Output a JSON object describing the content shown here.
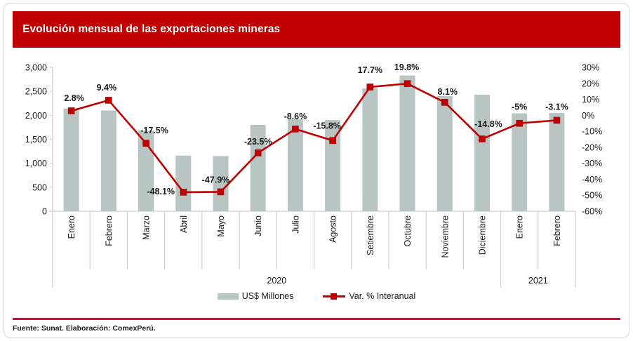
{
  "card": {
    "title": "Evolución mensual de las exportaciones mineras",
    "source": "Fuente: Sunat. Elaboración: ComexPerú."
  },
  "colors": {
    "banner_red": "#c00000",
    "bar_gray": "#b9c5c2",
    "line_red": "#c00000",
    "footer_rule_red": "#c9112e",
    "axis_line": "#c9d3d1",
    "text": "#1a1a1a"
  },
  "legend": [
    {
      "label": "US$ Millones"
    },
    {
      "label": "Var. % Interanual"
    }
  ],
  "chart_data": {
    "type": "combo",
    "title": "Evolución mensual de las exportaciones mineras",
    "categories": [
      "Enero",
      "Febrero",
      "Marzo",
      "Abril",
      "Mayo",
      "Junio",
      "Julio",
      "Agosto",
      "Setiembre",
      "Octubre",
      "Noviembre",
      "Diciembre",
      "Enero",
      "Febrero"
    ],
    "year_groups": [
      {
        "label": "2020",
        "count": 12
      },
      {
        "label": "2021",
        "count": 2
      }
    ],
    "series": [
      {
        "name": "US$ Millones",
        "type": "bar",
        "axis": "left",
        "values": [
          2140,
          2100,
          1680,
          1160,
          1150,
          1800,
          1920,
          1900,
          2560,
          2830,
          2400,
          2430,
          2040,
          2050
        ]
      },
      {
        "name": "Var. % Interanual",
        "type": "line",
        "axis": "right",
        "values": [
          2.8,
          9.4,
          -17.5,
          -48.1,
          -47.9,
          -23.5,
          -8.6,
          -15.8,
          17.7,
          19.8,
          8.1,
          -14.8,
          -5,
          -3.1
        ],
        "point_labels": [
          "2.8%",
          "9.4%",
          "-17.5%",
          "-48.1%",
          "-47.9%",
          "-23.5%",
          "-8.6%",
          "-15.8%",
          "17.7%",
          "19.8%",
          "8.1%",
          "-14.8%",
          "-5%",
          "-3.1%"
        ],
        "label_offsets": [
          [
            4,
            -14
          ],
          [
            -3,
            -14
          ],
          [
            12,
            -14
          ],
          [
            -32,
            3
          ],
          [
            -7,
            -13
          ],
          [
            0,
            -12
          ],
          [
            0,
            -14
          ],
          [
            -8,
            -17
          ],
          [
            0,
            -20
          ],
          [
            -1,
            -19
          ],
          [
            4,
            -11
          ],
          [
            9,
            -17
          ],
          [
            0,
            -19
          ],
          [
            0,
            -15
          ]
        ]
      }
    ],
    "left_axis": {
      "ticks": [
        "3,000",
        "2,500",
        "2,000",
        "1,500",
        "1,000",
        "500",
        "0"
      ],
      "tick_values": [
        3000,
        2500,
        2000,
        1500,
        1000,
        500,
        0
      ],
      "min": 0,
      "max": 3000
    },
    "right_axis": {
      "ticks": [
        "30%",
        "20%",
        "10%",
        "0%",
        "-10%",
        "-20%",
        "-30%",
        "-40%",
        "-50%",
        "-60%"
      ],
      "tick_values": [
        30,
        20,
        10,
        0,
        -10,
        -20,
        -30,
        -40,
        -50,
        -60
      ],
      "min": -60,
      "max": 30
    },
    "grid": false,
    "legend_position": "bottom"
  }
}
